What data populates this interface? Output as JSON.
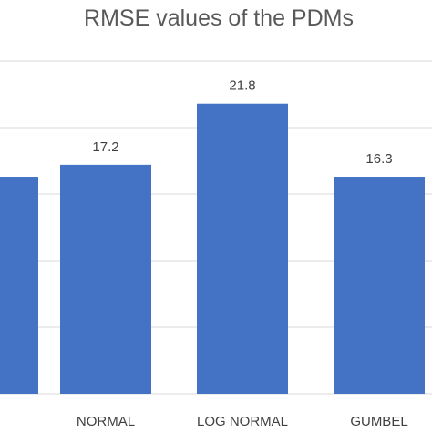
{
  "chart_data": {
    "type": "bar",
    "title": "RMSE values of the PDMs",
    "categories": [
      "",
      "NORMAL",
      "LOG NORMAL",
      "GUMBEL"
    ],
    "values": [
      16.3,
      17.2,
      21.8,
      16.3
    ],
    "data_labels": [
      "",
      "17.2",
      "21.8",
      "16.3"
    ],
    "ylim": [
      0,
      25
    ],
    "grid": true,
    "legend": "none",
    "bar_color": "#4472c4"
  }
}
